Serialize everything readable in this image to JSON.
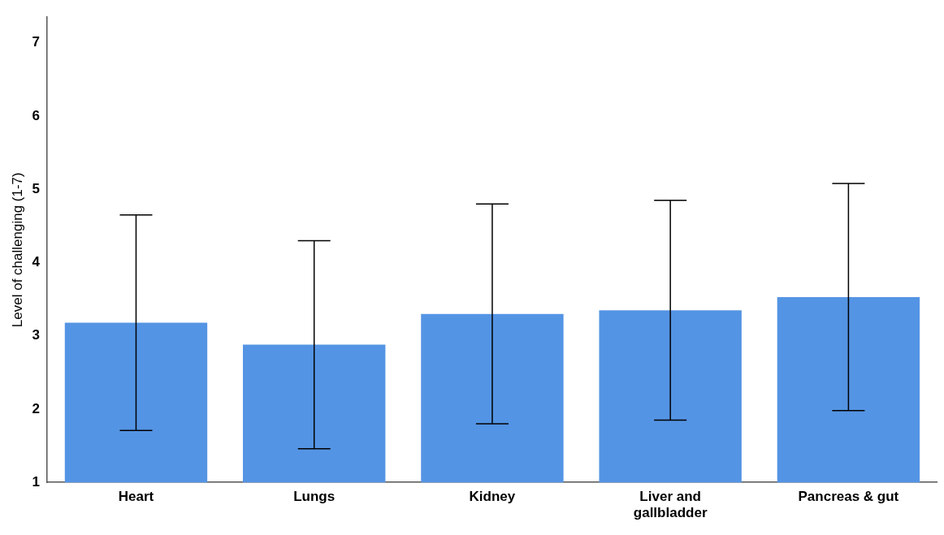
{
  "chart_data": {
    "type": "bar",
    "ylabel": "Level of challenging (1-7)",
    "categories": [
      "Heart",
      "Lungs",
      "Kidney",
      "Liver and gallbladder",
      "Pancreas & gut"
    ],
    "values": [
      3.18,
      2.88,
      3.3,
      3.35,
      3.53
    ],
    "errors": [
      1.47,
      1.42,
      1.5,
      1.5,
      1.55
    ],
    "color": "#5494e4",
    "ylim": [
      1,
      7.35
    ],
    "yticks": [
      1,
      2,
      3,
      4,
      5,
      6,
      7
    ],
    "grid": false,
    "legend": false
  }
}
